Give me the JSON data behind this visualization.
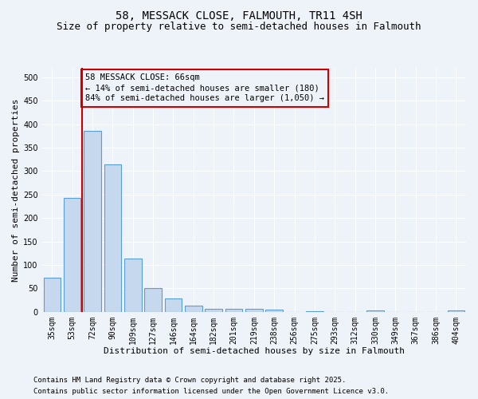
{
  "title": "58, MESSACK CLOSE, FALMOUTH, TR11 4SH",
  "subtitle": "Size of property relative to semi-detached houses in Falmouth",
  "xlabel": "Distribution of semi-detached houses by size in Falmouth",
  "ylabel": "Number of semi-detached properties",
  "categories": [
    "35sqm",
    "53sqm",
    "72sqm",
    "90sqm",
    "109sqm",
    "127sqm",
    "146sqm",
    "164sqm",
    "182sqm",
    "201sqm",
    "219sqm",
    "238sqm",
    "256sqm",
    "275sqm",
    "293sqm",
    "312sqm",
    "330sqm",
    "349sqm",
    "367sqm",
    "386sqm",
    "404sqm"
  ],
  "values": [
    72,
    242,
    385,
    315,
    113,
    50,
    29,
    13,
    7,
    7,
    7,
    5,
    0,
    2,
    0,
    0,
    3,
    0,
    0,
    0,
    3
  ],
  "bar_color": "#c5d8ed",
  "bar_edge_color": "#5a9fd4",
  "vline_color": "#cc0000",
  "annotation_box_text": "58 MESSACK CLOSE: 66sqm\n← 14% of semi-detached houses are smaller (180)\n84% of semi-detached houses are larger (1,050) →",
  "annotation_box_color": "#cc0000",
  "ylim": [
    0,
    520
  ],
  "yticks": [
    0,
    50,
    100,
    150,
    200,
    250,
    300,
    350,
    400,
    450,
    500
  ],
  "background_color": "#eef2f9",
  "grid_color": "#ffffff",
  "footer_line1": "Contains HM Land Registry data © Crown copyright and database right 2025.",
  "footer_line2": "Contains public sector information licensed under the Open Government Licence v3.0.",
  "title_fontsize": 10,
  "subtitle_fontsize": 9,
  "axis_label_fontsize": 8,
  "tick_fontsize": 7,
  "annotation_fontsize": 7.5,
  "footer_fontsize": 6.5
}
